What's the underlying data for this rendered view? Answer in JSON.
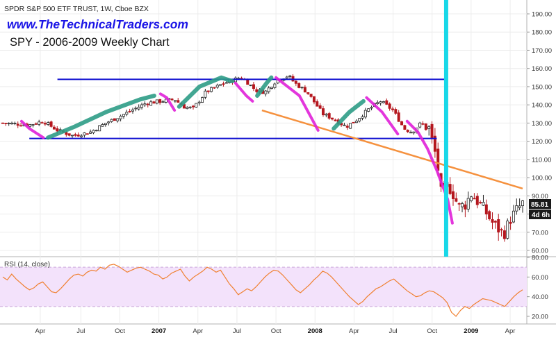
{
  "header": {
    "symbol_line": "SPDR S&P 500 ETF TRUST, 1W, Cboe BZX",
    "website": "www.TheTechnicalTraders.com",
    "chart_title": "SPY - 2006-2009 Weekly Chart",
    "rsi_label": "RSI (14, close)"
  },
  "price_badges": {
    "last_price": "85.81",
    "countdown": "4d 6h"
  },
  "colors": {
    "up_candle": "#ffffff",
    "down_candle": "#b5171e",
    "support_resistance": "#1010d0",
    "trendline": "#f5913e",
    "rally_highlight": "#2e9c86",
    "decline_highlight": "#e020d8",
    "cyan_marker": "#18d8e8",
    "rsi_line": "#f08030",
    "rsi_band": "#f3e2fb",
    "website_text": "#1a14e6",
    "last_price_badge": "#1a1a1a"
  },
  "chart_data": [
    {
      "type": "candlestick",
      "title": "SPY - 2006-2009 Weekly Chart",
      "ylim": [
        57,
        193
      ],
      "y_ticks": [
        60,
        70,
        80,
        90,
        100,
        110,
        120,
        130,
        140,
        150,
        160,
        170,
        180,
        190
      ],
      "y_tick_labels": [
        "60.00",
        "70.00",
        "80.00",
        "90.00",
        "100.00",
        "110.00",
        "120.00",
        "130.00",
        "140.00",
        "150.00",
        "160.00",
        "170.00",
        "180.00",
        "190.00"
      ],
      "x_ticks": [
        "Apr",
        "Jul",
        "Oct",
        "2007",
        "Apr",
        "Jul",
        "Oct",
        "2008",
        "Apr",
        "Jul",
        "Oct",
        "2009",
        "Apr"
      ],
      "x_tick_bold": [
        false,
        false,
        false,
        true,
        false,
        false,
        false,
        true,
        false,
        false,
        false,
        true,
        false
      ],
      "close_path": [
        [
          2006.0,
          130
        ],
        [
          2006.17,
          129
        ],
        [
          2006.26,
          131
        ],
        [
          2006.35,
          126
        ],
        [
          2006.45,
          123
        ],
        [
          2006.56,
          125
        ],
        [
          2006.66,
          130
        ],
        [
          2006.78,
          135
        ],
        [
          2006.92,
          141
        ],
        [
          2007.1,
          143
        ],
        [
          2007.16,
          139
        ],
        [
          2007.22,
          138
        ],
        [
          2007.3,
          147
        ],
        [
          2007.42,
          152
        ],
        [
          2007.52,
          155
        ],
        [
          2007.56,
          153
        ],
        [
          2007.62,
          148
        ],
        [
          2007.68,
          147
        ],
        [
          2007.76,
          154
        ],
        [
          2007.83,
          156
        ],
        [
          2007.87,
          152
        ],
        [
          2007.95,
          147
        ],
        [
          2008.0,
          141
        ],
        [
          2008.05,
          135
        ],
        [
          2008.1,
          133
        ],
        [
          2008.2,
          128
        ],
        [
          2008.27,
          132
        ],
        [
          2008.35,
          138
        ],
        [
          2008.42,
          142
        ],
        [
          2008.5,
          137
        ],
        [
          2008.57,
          127
        ],
        [
          2008.62,
          125
        ],
        [
          2008.68,
          130
        ],
        [
          2008.73,
          127
        ],
        [
          2008.78,
          110
        ],
        [
          2008.81,
          90
        ],
        [
          2008.85,
          96
        ],
        [
          2008.88,
          92
        ],
        [
          2008.9,
          88
        ],
        [
          2008.92,
          84
        ],
        [
          2008.96,
          85
        ],
        [
          2009.0,
          91
        ],
        [
          2009.04,
          87
        ],
        [
          2009.08,
          83
        ],
        [
          2009.13,
          76
        ],
        [
          2009.17,
          72
        ],
        [
          2009.21,
          69
        ],
        [
          2009.25,
          77
        ],
        [
          2009.29,
          82
        ],
        [
          2009.33,
          85.81
        ]
      ],
      "horizontal_lines": [
        {
          "y": 154,
          "x_from": 2006.35,
          "x_to": 2008.85
        },
        {
          "y": 121.5,
          "x_from": 2006.17,
          "x_to": 2008.78
        }
      ],
      "trendline": {
        "from": [
          2007.66,
          137
        ],
        "to": [
          2009.33,
          94
        ]
      },
      "vertical_marker_x": 2008.84,
      "highlight_segments": [
        {
          "kind": "decline",
          "points": [
            [
              2006.12,
              131
            ],
            [
              2006.17,
              127
            ],
            [
              2006.26,
              122
            ]
          ]
        },
        {
          "kind": "rally",
          "points": [
            [
              2006.29,
              122
            ],
            [
              2006.46,
              128
            ],
            [
              2006.66,
              136
            ],
            [
              2006.88,
              143
            ],
            [
              2006.97,
              145
            ]
          ]
        },
        {
          "kind": "decline",
          "points": [
            [
              2007.01,
              146
            ],
            [
              2007.05,
              144
            ],
            [
              2007.1,
              137
            ]
          ]
        },
        {
          "kind": "rally",
          "points": [
            [
              2007.13,
              139
            ],
            [
              2007.26,
              150
            ],
            [
              2007.4,
              155
            ],
            [
              2007.47,
              153
            ]
          ]
        },
        {
          "kind": "decline",
          "points": [
            [
              2007.49,
              152
            ],
            [
              2007.56,
              145
            ],
            [
              2007.6,
              142
            ]
          ]
        },
        {
          "kind": "rally",
          "points": [
            [
              2007.63,
              145
            ],
            [
              2007.69,
              152
            ],
            [
              2007.72,
              155
            ]
          ]
        },
        {
          "kind": "decline",
          "points": [
            [
              2007.75,
              155
            ],
            [
              2007.9,
              145
            ],
            [
              2008.02,
              126
            ]
          ]
        },
        {
          "kind": "rally",
          "points": [
            [
              2008.12,
              127
            ],
            [
              2008.22,
              136
            ],
            [
              2008.31,
              142
            ]
          ]
        },
        {
          "kind": "decline",
          "points": [
            [
              2008.33,
              144
            ],
            [
              2008.43,
              136
            ],
            [
              2008.53,
              124
            ]
          ]
        },
        {
          "kind": "decline",
          "points": [
            [
              2008.59,
              131
            ],
            [
              2008.66,
              125
            ],
            [
              2008.72,
              116
            ],
            [
              2008.78,
              104
            ],
            [
              2008.85,
              88
            ],
            [
              2008.88,
              75
            ]
          ]
        }
      ]
    },
    {
      "type": "line",
      "title": "RSI (14, close)",
      "ylim": [
        14,
        81
      ],
      "y_ticks": [
        20,
        40,
        60,
        80
      ],
      "y_tick_labels": [
        "20.00",
        "40.00",
        "60.00",
        "80.00"
      ],
      "band": [
        30,
        70
      ],
      "x_range": [
        2006.0,
        2009.33
      ],
      "values": [
        60,
        57,
        63,
        58,
        54,
        50,
        47,
        49,
        53,
        55,
        50,
        45,
        44,
        48,
        53,
        58,
        62,
        63,
        61,
        65,
        67,
        66,
        70,
        68,
        72,
        73,
        71,
        68,
        65,
        67,
        69,
        70,
        68,
        66,
        63,
        62,
        58,
        60,
        64,
        66,
        68,
        61,
        56,
        60,
        63,
        66,
        70,
        68,
        65,
        67,
        60,
        53,
        48,
        42,
        45,
        48,
        46,
        50,
        55,
        60,
        64,
        67,
        66,
        62,
        57,
        52,
        47,
        44,
        48,
        52,
        57,
        61,
        66,
        64,
        60,
        55,
        50,
        45,
        40,
        36,
        32,
        35,
        40,
        44,
        48,
        50,
        53,
        56,
        58,
        54,
        50,
        46,
        43,
        40,
        41,
        44,
        46,
        45,
        42,
        39,
        34,
        24,
        20,
        26,
        30,
        28,
        32,
        35,
        38,
        37,
        36,
        34,
        32,
        30,
        35,
        40,
        44,
        47
      ]
    }
  ]
}
